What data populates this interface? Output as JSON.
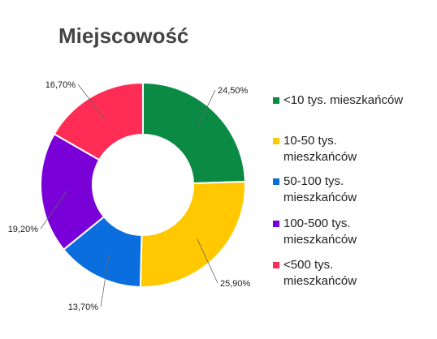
{
  "chart_data": {
    "type": "pie",
    "title": "Miejscowość",
    "donut": true,
    "legend_position": "right",
    "slices": [
      {
        "label": "<10 tys. mieszkańców",
        "legend_lines": [
          "<10 tys. mieszkańców"
        ],
        "value": 24.5,
        "value_label": "24,50%",
        "color": "#0a8a43"
      },
      {
        "label": "10-50 tys. mieszkańców",
        "legend_lines": [
          "10-50 tys.",
          "mieszkańców"
        ],
        "value": 25.9,
        "value_label": "25,90%",
        "color": "#ffc800"
      },
      {
        "label": "50-100 tys. mieszkańców",
        "legend_lines": [
          "50-100 tys.",
          "mieszkańców"
        ],
        "value": 13.7,
        "value_label": "13,70%",
        "color": "#0a6ede"
      },
      {
        "label": "100-500 tys. mieszkańców",
        "legend_lines": [
          "100-500 tys.",
          "mieszkańców"
        ],
        "value": 19.2,
        "value_label": "19,20%",
        "color": "#7a00d8"
      },
      {
        "label": "<500 tys. mieszkańców",
        "legend_lines": [
          "<500 tys.",
          "mieszkańców"
        ],
        "value": 16.7,
        "value_label": "16,70%",
        "color": "#ff2d55"
      }
    ]
  }
}
